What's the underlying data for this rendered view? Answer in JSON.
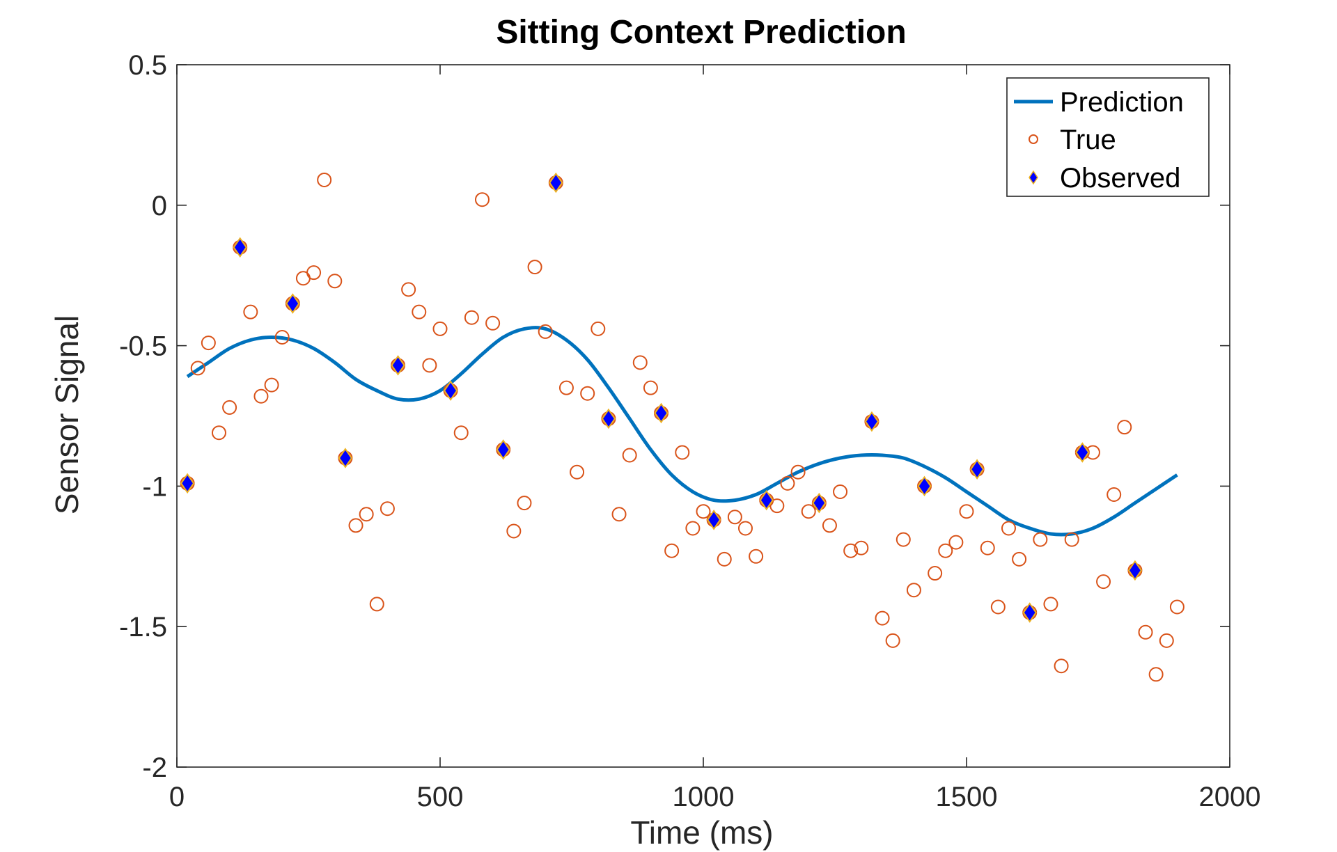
{
  "chart_data": {
    "type": "line",
    "title": "Sitting Context Prediction",
    "xlabel": "Time (ms)",
    "ylabel": "Sensor Signal",
    "xlim": [
      0,
      2000
    ],
    "ylim": [
      -2,
      0.5
    ],
    "xticks": [
      0,
      500,
      1000,
      1500,
      2000
    ],
    "xtick_labels": [
      "0",
      "500",
      "1000",
      "1500",
      "2000"
    ],
    "yticks": [
      -2,
      -1.5,
      -1,
      -0.5,
      0,
      0.5
    ],
    "ytick_labels": [
      "-2",
      "-1.5",
      "-1",
      "-0.5",
      "0",
      "0.5"
    ],
    "grid": false,
    "box": true,
    "legend": {
      "position": "top-right",
      "entries": [
        "Prediction",
        "True",
        "Observed"
      ]
    },
    "colors": {
      "prediction": "#0072BD",
      "true": "#D95319",
      "observed_fill": "#0000FF",
      "observed_edge": "#EDB120",
      "axis": "#262626"
    },
    "series": [
      {
        "name": "Prediction",
        "style": "line",
        "x": [
          20,
          60,
          100,
          140,
          180,
          220,
          260,
          300,
          340,
          380,
          420,
          460,
          500,
          540,
          580,
          620,
          660,
          700,
          740,
          780,
          820,
          860,
          900,
          940,
          980,
          1020,
          1060,
          1100,
          1140,
          1180,
          1220,
          1260,
          1300,
          1340,
          1380,
          1420,
          1460,
          1500,
          1540,
          1580,
          1620,
          1660,
          1700,
          1740,
          1780,
          1820,
          1860,
          1900
        ],
        "y": [
          -0.61,
          -0.56,
          -0.51,
          -0.48,
          -0.47,
          -0.48,
          -0.51,
          -0.56,
          -0.62,
          -0.66,
          -0.69,
          -0.69,
          -0.66,
          -0.6,
          -0.53,
          -0.47,
          -0.44,
          -0.44,
          -0.48,
          -0.55,
          -0.65,
          -0.76,
          -0.87,
          -0.96,
          -1.02,
          -1.05,
          -1.05,
          -1.03,
          -0.99,
          -0.95,
          -0.92,
          -0.9,
          -0.89,
          -0.89,
          -0.9,
          -0.93,
          -0.97,
          -1.02,
          -1.07,
          -1.12,
          -1.15,
          -1.17,
          -1.17,
          -1.15,
          -1.11,
          -1.06,
          -1.01,
          -0.96
        ]
      },
      {
        "name": "True",
        "style": "scatter",
        "x": [
          20,
          40,
          60,
          80,
          100,
          120,
          140,
          160,
          180,
          200,
          220,
          240,
          260,
          280,
          300,
          320,
          340,
          360,
          380,
          400,
          420,
          440,
          460,
          480,
          500,
          520,
          540,
          560,
          580,
          600,
          620,
          640,
          660,
          680,
          700,
          720,
          740,
          760,
          780,
          800,
          820,
          840,
          860,
          880,
          900,
          920,
          940,
          960,
          980,
          1000,
          1020,
          1040,
          1060,
          1080,
          1100,
          1120,
          1140,
          1160,
          1180,
          1200,
          1220,
          1240,
          1260,
          1280,
          1300,
          1320,
          1340,
          1360,
          1380,
          1400,
          1420,
          1440,
          1460,
          1480,
          1500,
          1520,
          1540,
          1560,
          1580,
          1600,
          1620,
          1640,
          1660,
          1680,
          1700,
          1720,
          1740,
          1760,
          1780,
          1800,
          1820,
          1840,
          1860,
          1880,
          1900
        ],
        "y": [
          -0.99,
          -0.58,
          -0.49,
          -0.81,
          -0.72,
          -0.15,
          -0.38,
          -0.68,
          -0.64,
          -0.47,
          -0.35,
          -0.26,
          -0.24,
          0.09,
          -0.27,
          -0.9,
          -1.14,
          -1.1,
          -1.42,
          -1.08,
          -0.57,
          -0.3,
          -0.38,
          -0.57,
          -0.44,
          -0.66,
          -0.81,
          -0.4,
          0.02,
          -0.42,
          -0.87,
          -1.16,
          -1.06,
          -0.22,
          -0.45,
          0.08,
          -0.65,
          -0.95,
          -0.67,
          -0.44,
          -0.76,
          -1.1,
          -0.89,
          -0.56,
          -0.65,
          -0.74,
          -1.23,
          -0.88,
          -1.15,
          -1.09,
          -1.12,
          -1.26,
          -1.11,
          -1.15,
          -1.25,
          -1.05,
          -1.07,
          -0.99,
          -0.95,
          -1.09,
          -1.06,
          -1.14,
          -1.02,
          -1.23,
          -1.22,
          -0.77,
          -1.47,
          -1.55,
          -1.19,
          -1.37,
          -1.0,
          -1.31,
          -1.23,
          -1.2,
          -1.09,
          -0.94,
          -1.22,
          -1.43,
          -1.15,
          -1.26,
          -1.45,
          -1.19,
          -1.42,
          -1.64,
          -1.19,
          -0.88,
          -0.88,
          -1.34,
          -1.03,
          -0.79,
          -1.3,
          -1.52,
          -1.67,
          -1.55,
          -1.43
        ]
      },
      {
        "name": "Observed",
        "style": "scatter",
        "x": [
          20,
          120,
          220,
          320,
          420,
          520,
          620,
          720,
          820,
          920,
          1020,
          1120,
          1220,
          1320,
          1420,
          1520,
          1620,
          1720,
          1820
        ],
        "y": [
          -0.99,
          -0.15,
          -0.35,
          -0.9,
          -0.57,
          -0.66,
          -0.87,
          0.08,
          -0.76,
          -0.74,
          -1.12,
          -1.05,
          -1.06,
          -0.77,
          -1.0,
          -0.94,
          -1.45,
          -0.88,
          -1.3
        ]
      }
    ]
  }
}
